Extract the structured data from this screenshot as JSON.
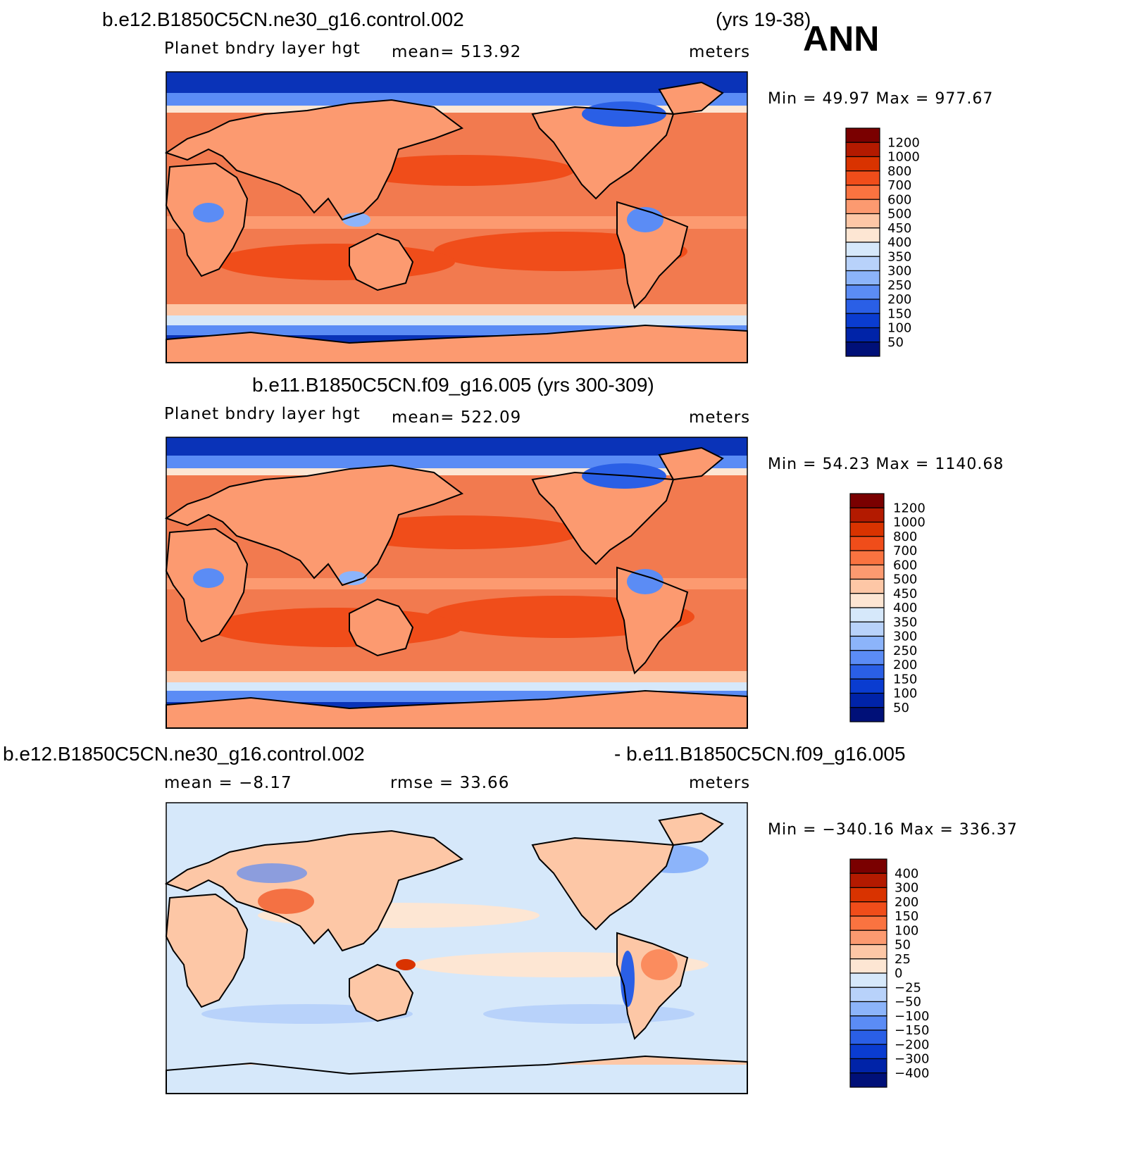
{
  "season": "ANN",
  "panel1": {
    "case": "b.e12.B1850C5CN.ne30_g16.control.002",
    "years": "(yrs 19-38)",
    "variable": "Planet bndry layer hgt",
    "mean": "mean= 513.92",
    "units": "meters",
    "minmax": "Min =   49.97  Max  =  977.67",
    "colorbar": [
      "1200",
      "1000",
      "800",
      "700",
      "600",
      "500",
      "450",
      "400",
      "350",
      "300",
      "250",
      "200",
      "150",
      "100",
      "50"
    ]
  },
  "panel2": {
    "case": "b.e11.B1850C5CN.f09_g16.005 (yrs 300-309)",
    "variable": "Planet bndry layer hgt",
    "mean": "mean= 522.09",
    "units": "meters",
    "minmax": "Min =   54.23  Max  =  1140.68",
    "colorbar": [
      "1200",
      "1000",
      "800",
      "700",
      "600",
      "500",
      "450",
      "400",
      "350",
      "300",
      "250",
      "200",
      "150",
      "100",
      "50"
    ]
  },
  "panel3": {
    "case_a": "b.e12.B1850C5CN.ne30_g16.control.002",
    "case_b": "- b.e11.B1850C5CN.f09_g16.005",
    "mean": "mean  =    −8.17",
    "rmse": "rmse  =    33.66",
    "units": "meters",
    "minmax": "Min  =  −340.16  Max  =  336.37",
    "colorbar": [
      "400",
      "300",
      "200",
      "150",
      "100",
      "50",
      "25",
      "0",
      "−25",
      "−50",
      "−100",
      "−150",
      "−200",
      "−300",
      "−400"
    ]
  },
  "colors": {
    "abs_scale": [
      "#7a0000",
      "#b31a00",
      "#d93300",
      "#f04d1a",
      "#fa7340",
      "#fc9a70",
      "#fdc7a6",
      "#fde6d3",
      "#d6e8fa",
      "#b8d2fa",
      "#8cb4fa",
      "#5b8cf5",
      "#2a5fe6",
      "#0a3cd0",
      "#0023a8",
      "#001078"
    ],
    "ocean_warm": "#f27a4f",
    "land_warm": "#f59a78",
    "polar": "#0a33b8",
    "diff_bg": "#d6e8fa",
    "diff_pos": "#fdd6bf",
    "diff_neg": "#9ec0f7",
    "diff_hot": "#e8501e"
  }
}
